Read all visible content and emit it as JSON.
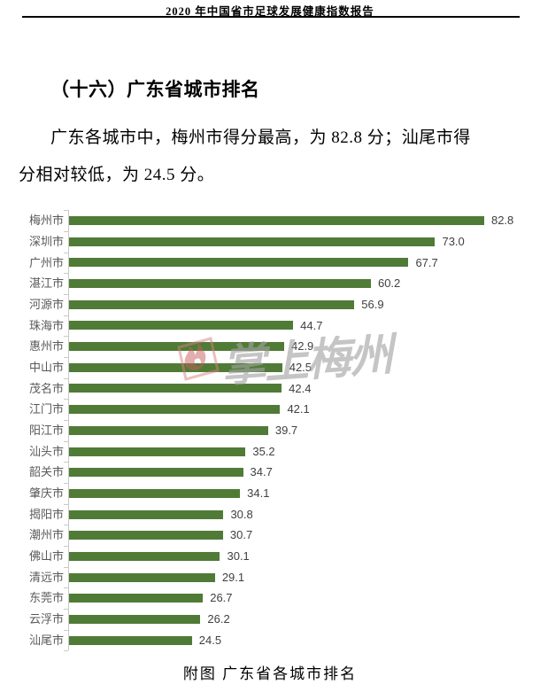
{
  "page": {
    "header": "2020 年中国省市足球发展健康指数报告",
    "section_title": "（十六）广东省城市排名",
    "paragraph_line1": "广东各城市中，梅州市得分最高，为 82.8 分；汕尾市得",
    "paragraph_line2": "分相对较低，为 24.5 分。",
    "caption": "附图  广东省各城市排名"
  },
  "watermark": {
    "text": "掌上梅州",
    "logo": "flame-icon",
    "text_color": "#a3a3a3",
    "logo_color": "#cc6a6a"
  },
  "chart_data": {
    "type": "bar",
    "orientation": "horizontal",
    "title": "",
    "xlabel": "",
    "ylabel": "",
    "xlim": [
      0,
      88
    ],
    "gridlines": false,
    "legend": false,
    "value_labels": true,
    "bar_color": "#4f7b36",
    "label_color": "#595959",
    "value_color": "#404040",
    "axis_color": "#c9c9c9",
    "categories": [
      "梅州市",
      "深圳市",
      "广州市",
      "湛江市",
      "河源市",
      "珠海市",
      "惠州市",
      "中山市",
      "茂名市",
      "江门市",
      "阳江市",
      "汕头市",
      "韶关市",
      "肇庆市",
      "揭阳市",
      "潮州市",
      "佛山市",
      "清远市",
      "东莞市",
      "云浮市",
      "汕尾市"
    ],
    "values": [
      82.8,
      73.0,
      67.7,
      60.2,
      56.9,
      44.7,
      42.9,
      42.5,
      42.4,
      42.1,
      39.7,
      35.2,
      34.7,
      34.1,
      30.8,
      30.7,
      30.1,
      29.1,
      26.7,
      26.2,
      24.5
    ]
  }
}
